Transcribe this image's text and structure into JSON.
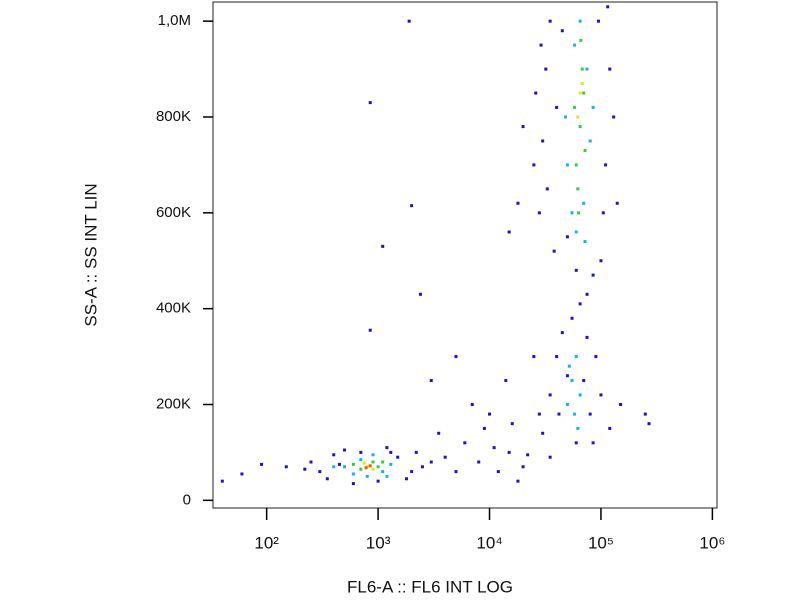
{
  "chart_data": {
    "type": "scatter",
    "x_label": "FL6-A :: FL6 INT LOG",
    "y_label": "SS-A :: SS INT LIN",
    "xscale": "log",
    "xlim": [
      33,
      1100000
    ],
    "ylim": [
      -16000,
      1040000
    ],
    "xticks": [
      {
        "value": 100,
        "label": "10²"
      },
      {
        "value": 1000,
        "label": "10³"
      },
      {
        "value": 10000,
        "label": "10⁴"
      },
      {
        "value": 100000,
        "label": "10⁵"
      },
      {
        "value": 1000000,
        "label": "10⁶"
      }
    ],
    "yticks": [
      0,
      {
        "value": 200000,
        "label": "200K"
      },
      {
        "value": 400000,
        "label": "400K"
      },
      {
        "value": 600000,
        "label": "600K"
      },
      {
        "value": 800000,
        "label": "800K"
      },
      {
        "value": 1000000,
        "label": "1,0M"
      }
    ],
    "series": [
      {
        "color": "#1a14c8",
        "x": [
          300,
          250,
          350,
          400,
          500,
          1500,
          2000,
          1800,
          1200,
          1000,
          600,
          2500,
          450,
          1300,
          700,
          150,
          220,
          90,
          60,
          40,
          3000,
          2200,
          4000,
          5000,
          6000,
          8000,
          9000,
          12000,
          15000,
          20000,
          3500,
          7000,
          10000,
          14000,
          25000,
          30000,
          18000,
          22000,
          28000,
          16000,
          11000,
          35000,
          40000,
          45000,
          70000,
          80000,
          90000,
          55000,
          100000,
          60000,
          35000,
          120000,
          50000,
          75000,
          42000,
          65000,
          85000,
          150000,
          250000,
          270000,
          28000,
          30000,
          32000,
          35000,
          26000,
          33000,
          38000,
          40000,
          100000,
          110000,
          120000,
          95000,
          130000,
          105000,
          45000,
          85000,
          75000,
          50000,
          60000,
          25000,
          29000,
          115000,
          140000,
          18000,
          15000,
          20000,
          1900,
          850,
          1100,
          2000,
          2400,
          850,
          5000,
          3000
        ],
        "y": [
          60000,
          80000,
          45000,
          95000,
          105000,
          90000,
          60000,
          45000,
          110000,
          40000,
          35000,
          70000,
          75000,
          100000,
          100000,
          70000,
          65000,
          75000,
          55000,
          40000,
          80000,
          100000,
          90000,
          60000,
          120000,
          80000,
          150000,
          60000,
          100000,
          70000,
          140000,
          200000,
          180000,
          250000,
          300000,
          140000,
          40000,
          95000,
          180000,
          160000,
          110000,
          220000,
          300000,
          350000,
          250000,
          180000,
          300000,
          380000,
          220000,
          120000,
          90000,
          150000,
          260000,
          340000,
          180000,
          410000,
          120000,
          200000,
          180000,
          160000,
          600000,
          750000,
          900000,
          1000000,
          850000,
          650000,
          520000,
          820000,
          500000,
          700000,
          900000,
          1000000,
          800000,
          600000,
          980000,
          470000,
          430000,
          550000,
          480000,
          700000,
          950000,
          1030000,
          620000,
          620000,
          560000,
          780000,
          1000000,
          830000,
          530000,
          615000,
          430000,
          355000,
          300000,
          250000
        ]
      },
      {
        "color": "#14b4e6",
        "x": [
          500,
          600,
          700,
          900,
          1100,
          1300,
          400,
          1200,
          800,
          50000,
          55000,
          60000,
          65000,
          58000,
          52000,
          62000,
          50000,
          55000,
          70000,
          75000,
          80000,
          60000,
          65000,
          85000,
          48000,
          72000,
          58000
        ],
        "y": [
          70000,
          55000,
          85000,
          95000,
          60000,
          75000,
          70000,
          50000,
          50000,
          200000,
          250000,
          300000,
          220000,
          180000,
          280000,
          150000,
          700000,
          600000,
          620000,
          900000,
          750000,
          560000,
          1000000,
          820000,
          800000,
          540000,
          950000
        ]
      },
      {
        "color": "#3cc83c",
        "x": [
          700,
          900,
          1000,
          600,
          1100,
          60000,
          65000,
          70000,
          62000,
          68000,
          58000,
          72000,
          66000,
          63000
        ],
        "y": [
          65000,
          80000,
          70000,
          75000,
          80000,
          700000,
          780000,
          850000,
          650000,
          900000,
          820000,
          730000,
          960000,
          600000
        ]
      },
      {
        "color": "#e6e614",
        "x": [
          800,
          900,
          750,
          65000,
          68000,
          62000
        ],
        "y": [
          70000,
          65000,
          78000,
          850000,
          870000,
          800000
        ]
      },
      {
        "color": "#e65a0a",
        "x": [
          850,
          780
        ],
        "y": [
          72000,
          68000
        ]
      }
    ]
  }
}
